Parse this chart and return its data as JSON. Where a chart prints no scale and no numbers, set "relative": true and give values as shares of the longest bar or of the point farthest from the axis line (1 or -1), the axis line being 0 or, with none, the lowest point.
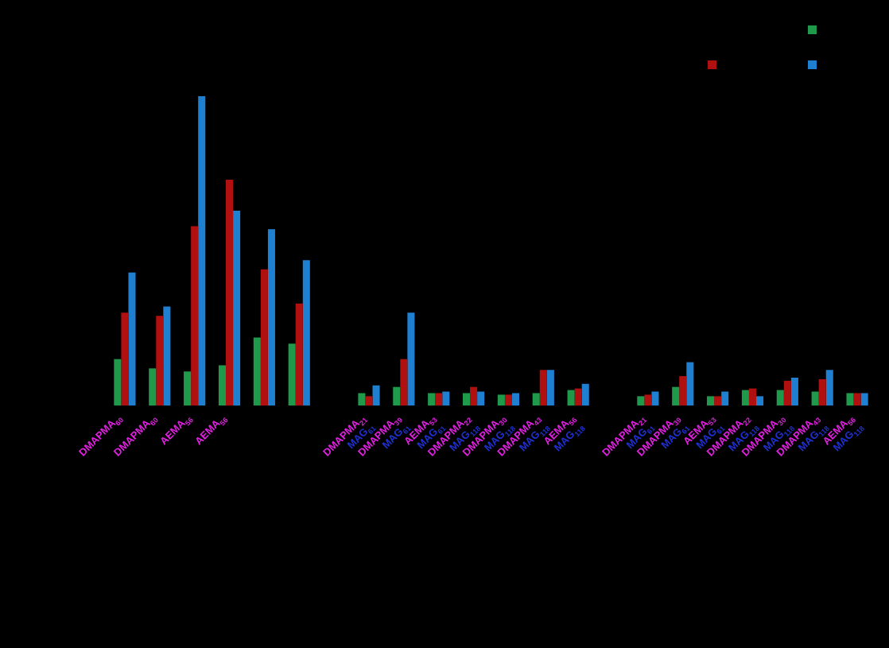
{
  "chart_data": {
    "type": "bar",
    "relative": true,
    "categories": [
      "DMAPMA$_{60}$",
      "DMAPMA$_{60}$",
      "AEMA$_{56}$",
      "AEMA$_{56}$",
      null,
      null,
      null,
      "DMAPMA$_{21}$\nMAG$_{61}$",
      "DMAPMA$_{39}$\nMAG$_{61}$",
      "AEMA$_{53}$\nMAG$_{61}$",
      "DMAPMA$_{22}$\nMAG$_{118}$",
      "DMAPMA$_{30}$\nMAG$_{118}$",
      "DMAPMA$_{43}$\nMAG$_{118}$",
      "AEMA$_{56}$\nMAG$_{118}$",
      null,
      "DMAPMA$_{21}$\nMAG$_{61}$",
      "DMAPMA$_{39}$\nMAG$_{61}$",
      "AEMA$_{53}$\nMAG$_{61}$",
      "DMAPMA$_{22}$\nMAG$_{118}$",
      "DMAPMA$_{30}$\nMAG$_{118}$",
      "DMAPMA$_{43}$\nMAG$_{118}$",
      "AEMA$_{56}$\nMAG$_{118}$"
    ],
    "series": [
      {
        "color": "#1e9a4a",
        "values": [
          0.15,
          0.12,
          0.11,
          0.13,
          0.22,
          0.2,
          null,
          0.04,
          0.06,
          0.04,
          0.04,
          0.035,
          0.04,
          0.05,
          null,
          0.03,
          0.06,
          0.03,
          0.05,
          0.05,
          0.045,
          0.04
        ]
      },
      {
        "color": "#b01010",
        "values": [
          0.3,
          0.29,
          0.58,
          0.73,
          0.44,
          0.33,
          null,
          0.03,
          0.15,
          0.04,
          0.06,
          0.035,
          0.115,
          0.055,
          null,
          0.035,
          0.095,
          0.03,
          0.055,
          0.08,
          0.085,
          0.04
        ]
      },
      {
        "color": "#1f7fd0",
        "values": [
          0.43,
          0.32,
          1.0,
          0.63,
          0.57,
          0.47,
          null,
          0.065,
          0.3,
          0.045,
          0.045,
          0.04,
          0.115,
          0.07,
          null,
          0.045,
          0.14,
          0.045,
          0.03,
          0.09,
          0.115,
          0.04
        ]
      }
    ]
  }
}
